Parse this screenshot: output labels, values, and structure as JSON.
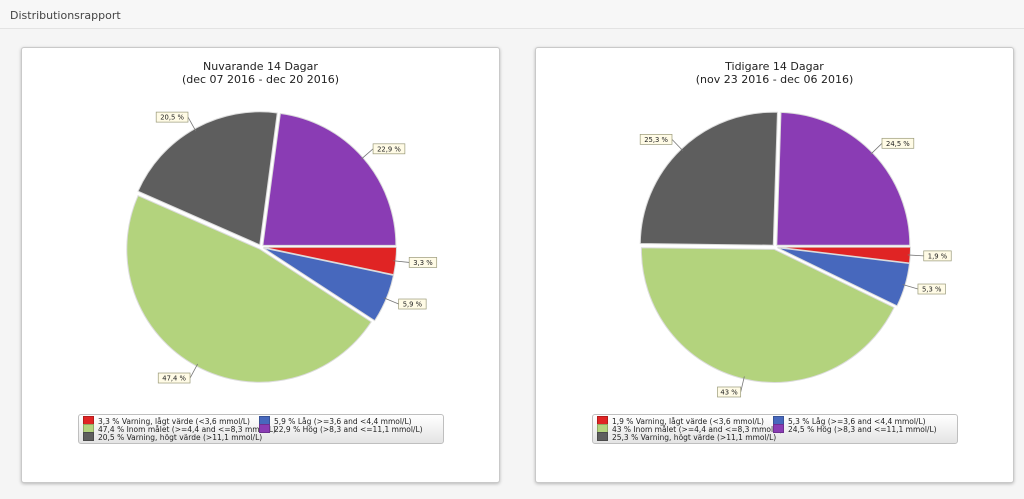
{
  "header": {
    "title": "Distributionsrapport"
  },
  "chart_data": [
    {
      "type": "pie",
      "title": "Nuvarande 14 Dagar",
      "subtitle": "(dec 07 2016 - dec 20 2016)",
      "slices": [
        {
          "label": "3,3 %",
          "value": 3.3,
          "color": "#e02424",
          "legend": "3,3 % Varning, lågt värde (<3,6 mmol/L)"
        },
        {
          "label": "5,9 %",
          "value": 5.9,
          "color": "#4768bd",
          "legend": "5,9 % Låg (>=3,6 and <4,4 mmol/L)"
        },
        {
          "label": "47,4 %",
          "value": 47.4,
          "color": "#b3d37d",
          "legend": "47,4 % Inom målet (>=4,4 and <=8,3 mmol/L)"
        },
        {
          "label": "20,5 %",
          "value": 20.5,
          "color": "#5e5e5e",
          "legend": "20,5 %  Varning, högt värde (>11,1 mmol/L)"
        },
        {
          "label": "22,9 %",
          "value": 22.9,
          "color": "#8a3cb4",
          "legend": "22,9 %  Hög (>8,3 and <=11,1 mmol/L)"
        }
      ]
    },
    {
      "type": "pie",
      "title": "Tidigare 14 Dagar",
      "subtitle": "(nov 23 2016 - dec 06 2016)",
      "slices": [
        {
          "label": "1,9 %",
          "value": 1.9,
          "color": "#e02424",
          "legend": "1,9 % Varning, lågt värde (<3,6 mmol/L)"
        },
        {
          "label": "5,3 %",
          "value": 5.3,
          "color": "#4768bd",
          "legend": "5,3 % Låg (>=3,6 and <4,4 mmol/L)"
        },
        {
          "label": "43 %",
          "value": 43,
          "color": "#b3d37d",
          "legend": "43 % Inom målet (>=4,4 and <=8,3 mmol/L)"
        },
        {
          "label": "25,3 %",
          "value": 25.3,
          "color": "#5e5e5e",
          "legend": "25,3 %  Varning, högt värde (>11,1 mmol/L)"
        },
        {
          "label": "24,5 %",
          "value": 24.5,
          "color": "#8a3cb4",
          "legend": "24,5 %  Hög (>8,3 and <=11,1 mmol/L)"
        }
      ]
    }
  ]
}
